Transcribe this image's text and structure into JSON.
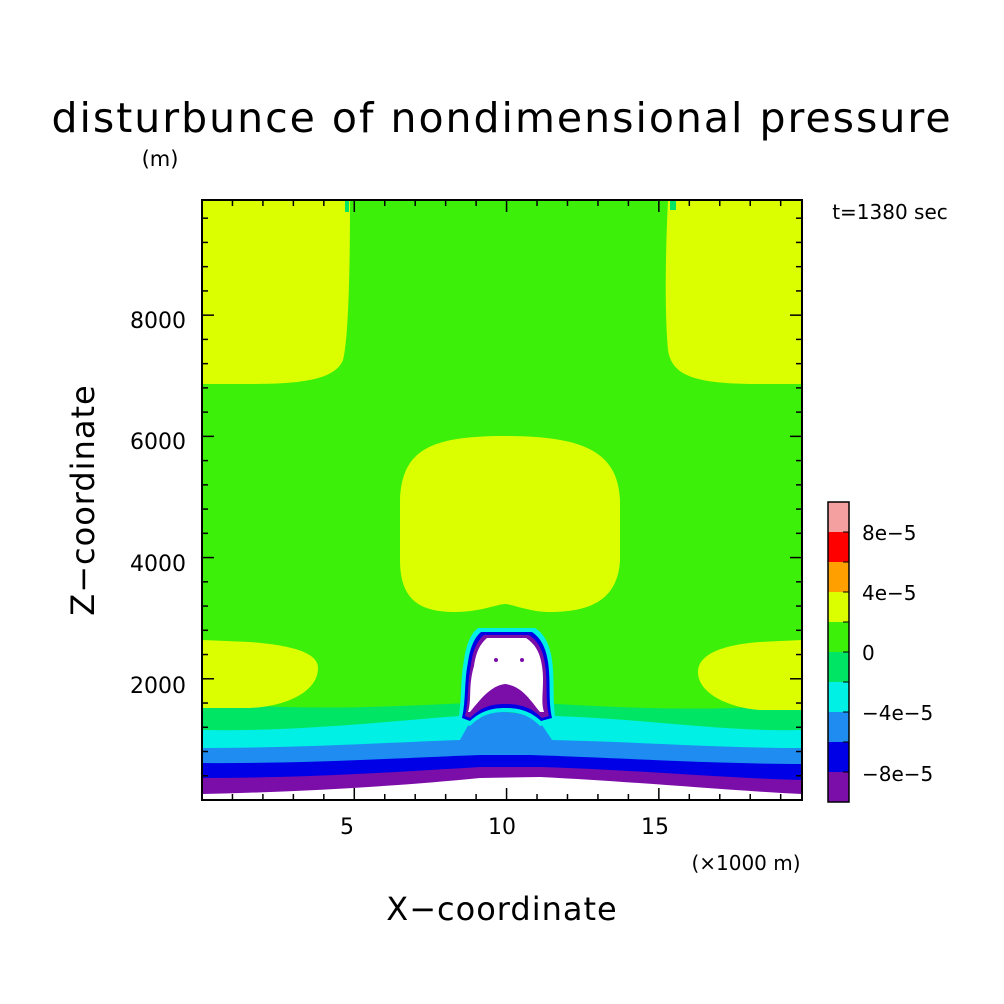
{
  "chart_data": {
    "type": "heatmap",
    "title": "disturbunce of nondimensional pressure",
    "yunit": "(m)",
    "time_label": "t=1380 sec",
    "xlabel": "X−coordinate",
    "ylabel": "Z−coordinate",
    "xunit": "(×1000 m)",
    "xlim": [
      0,
      19.7
    ],
    "ylim": [
      0,
      9900
    ],
    "xticks": [
      5,
      10,
      15
    ],
    "xtick_labels": [
      "5",
      "10",
      "15"
    ],
    "yticks": [
      2000,
      4000,
      6000,
      8000
    ],
    "ytick_labels": [
      "2000",
      "4000",
      "6000",
      "8000"
    ],
    "colorbar": {
      "levels": [
        -0.0001,
        -8e-05,
        -6e-05,
        -4e-05,
        -2e-05,
        0,
        2e-05,
        4e-05,
        6e-05,
        8e-05,
        0.0001
      ],
      "colors": [
        "#7B0DA8",
        "#0000E6",
        "#1E8CF0",
        "#00F0E6",
        "#00E664",
        "#3CF00A",
        "#DCFF00",
        "#FFA000",
        "#FF0000",
        "#F5A0A0"
      ],
      "labels": [
        {
          "value": -8e-05,
          "text": "−8e−5"
        },
        {
          "value": -4e-05,
          "text": "−4e−5"
        },
        {
          "value": 0,
          "text": "0"
        },
        {
          "value": 4e-05,
          "text": "4e−5"
        },
        {
          "value": 8e-05,
          "text": "8e−5"
        }
      ]
    },
    "regions": {
      "background_level": "0 to 2e-5",
      "top_corners": "2e-5 to 4e-5",
      "central_bubble_z": [
        3200,
        6100
      ],
      "side_lobes_z": [
        1500,
        2700
      ],
      "cloud_top_z": 2900
    }
  }
}
